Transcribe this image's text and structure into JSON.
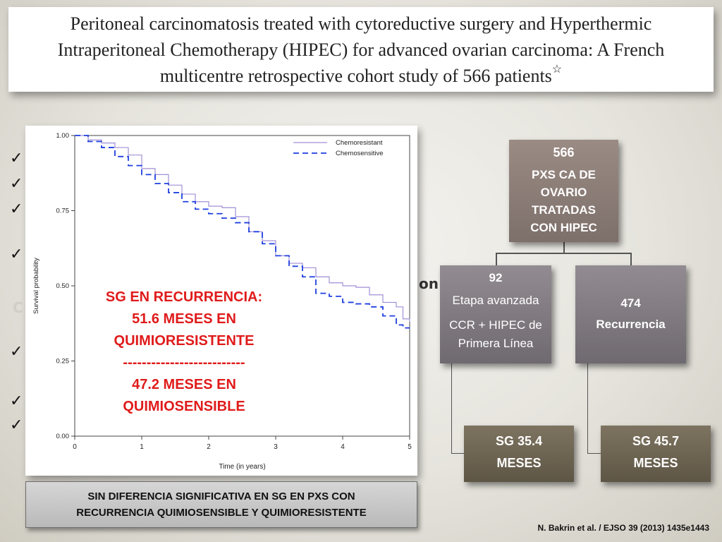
{
  "title": {
    "lines": [
      "Peritoneal carcinomatosis treated with cytoreductive surgery and Hyperthermic",
      "Intraperitoneal Chemotherapy (HIPEC) for advanced ovarian carcinoma: A French",
      "multicentre retrospective cohort study of 566 patients"
    ],
    "star": "☆"
  },
  "background": {
    "check_mark": "✓",
    "stray_text_on": "on",
    "stray_text_c": "C"
  },
  "chart_data": {
    "type": "line",
    "title": "",
    "xlabel": "Time (in years)",
    "ylabel": "Survival probability",
    "xlim": [
      0,
      5
    ],
    "ylim": [
      0,
      1
    ],
    "x_ticks": [
      "0",
      "1",
      "2",
      "3",
      "4",
      "5"
    ],
    "y_ticks": [
      "0.00",
      "0.25",
      "0.50",
      "0.75",
      "1.00"
    ],
    "legend_position": "top-right",
    "series": [
      {
        "name": "Chemoresistant",
        "style": "solid",
        "color": "#a08fd6",
        "points": [
          [
            0,
            1.0
          ],
          [
            0.2,
            0.985
          ],
          [
            0.4,
            0.975
          ],
          [
            0.6,
            0.96
          ],
          [
            0.8,
            0.935
          ],
          [
            1.0,
            0.89
          ],
          [
            1.2,
            0.87
          ],
          [
            1.4,
            0.835
          ],
          [
            1.6,
            0.805
          ],
          [
            1.8,
            0.78
          ],
          [
            2.0,
            0.765
          ],
          [
            2.2,
            0.76
          ],
          [
            2.4,
            0.73
          ],
          [
            2.6,
            0.68
          ],
          [
            2.8,
            0.65
          ],
          [
            3.0,
            0.6
          ],
          [
            3.2,
            0.575
          ],
          [
            3.4,
            0.56
          ],
          [
            3.6,
            0.53
          ],
          [
            3.8,
            0.51
          ],
          [
            4.0,
            0.5
          ],
          [
            4.2,
            0.495
          ],
          [
            4.4,
            0.47
          ],
          [
            4.6,
            0.445
          ],
          [
            4.8,
            0.43
          ],
          [
            4.9,
            0.39
          ],
          [
            5.0,
            0.38
          ]
        ]
      },
      {
        "name": "Chemosensitive",
        "style": "dashed",
        "color": "#1f3fe0",
        "points": [
          [
            0,
            1.0
          ],
          [
            0.2,
            0.98
          ],
          [
            0.4,
            0.96
          ],
          [
            0.6,
            0.93
          ],
          [
            0.8,
            0.9
          ],
          [
            1.0,
            0.87
          ],
          [
            1.2,
            0.84
          ],
          [
            1.4,
            0.81
          ],
          [
            1.6,
            0.78
          ],
          [
            1.8,
            0.755
          ],
          [
            2.0,
            0.74
          ],
          [
            2.2,
            0.725
          ],
          [
            2.4,
            0.71
          ],
          [
            2.6,
            0.68
          ],
          [
            2.8,
            0.64
          ],
          [
            3.0,
            0.6
          ],
          [
            3.2,
            0.565
          ],
          [
            3.4,
            0.53
          ],
          [
            3.6,
            0.475
          ],
          [
            3.8,
            0.465
          ],
          [
            4.0,
            0.445
          ],
          [
            4.2,
            0.44
          ],
          [
            4.4,
            0.43
          ],
          [
            4.6,
            0.4
          ],
          [
            4.8,
            0.37
          ],
          [
            4.9,
            0.36
          ],
          [
            5.0,
            0.36
          ]
        ]
      }
    ]
  },
  "overlay": {
    "lines": [
      "SG EN RECURRENCIA:",
      "51.6 MESES EN",
      "QUIMIORESISTENTE",
      "--------------------------",
      "47.2 MESES EN",
      "QUIMIOSENSIBLE"
    ]
  },
  "bottom_note": {
    "line1": "SIN DIFERENCIA SIGNIFICATIVA EN SG EN PXS CON",
    "line2": "RECURRENCIA QUIMIOSENSIBLE  Y QUIMIORESISTENTE"
  },
  "diagram": {
    "top": {
      "count": "566",
      "label": [
        "PXS CA DE",
        "OVARIO",
        "TRATADAS",
        "CON HIPEC"
      ]
    },
    "left": {
      "count": "92",
      "label1": "Etapa avanzada",
      "label2": [
        "CCR + HIPEC de",
        "Primera Línea"
      ]
    },
    "right": {
      "count": "474",
      "label": "Recurrencia"
    },
    "bottom_left": {
      "line1": "SG 35.4",
      "line2": "MESES"
    },
    "bottom_right": {
      "line1": "SG 45.7",
      "line2": "MESES"
    }
  },
  "citation": "N. Bakrin et al. / EJSO 39 (2013) 1435e1443"
}
